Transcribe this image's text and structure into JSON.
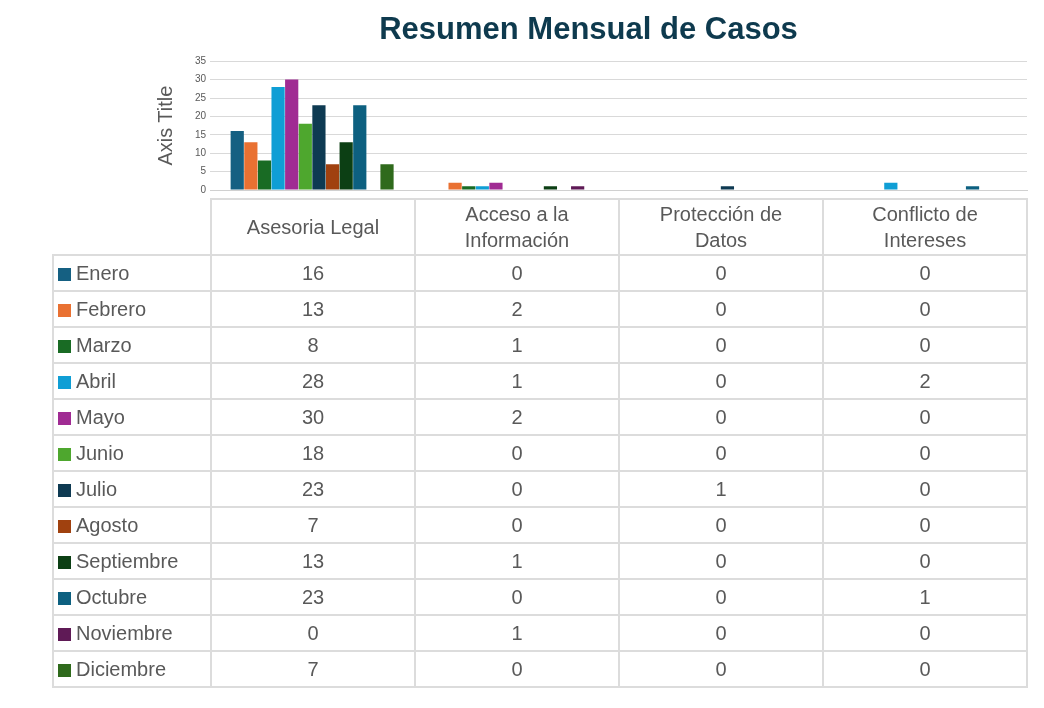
{
  "chart_data": {
    "type": "bar",
    "title": "Resumen Mensual de Casos",
    "ylabel": "Axis Title",
    "categories": [
      "Asesoria Legal",
      "Acceso a la Información",
      "Protección de Datos",
      "Conflicto de Intereses"
    ],
    "series": [
      {
        "name": "Enero",
        "color": "#156082",
        "values": [
          16,
          0,
          0,
          0
        ]
      },
      {
        "name": "Febrero",
        "color": "#e97132",
        "values": [
          13,
          2,
          0,
          0
        ]
      },
      {
        "name": "Marzo",
        "color": "#196b24",
        "values": [
          8,
          1,
          0,
          0
        ]
      },
      {
        "name": "Abril",
        "color": "#0f9ed5",
        "values": [
          28,
          1,
          0,
          2
        ]
      },
      {
        "name": "Mayo",
        "color": "#a02b93",
        "values": [
          30,
          2,
          0,
          0
        ]
      },
      {
        "name": "Junio",
        "color": "#4ea72e",
        "values": [
          18,
          0,
          0,
          0
        ]
      },
      {
        "name": "Julio",
        "color": "#0e3a52",
        "values": [
          23,
          0,
          1,
          0
        ]
      },
      {
        "name": "Agosto",
        "color": "#a0410f",
        "values": [
          7,
          0,
          0,
          0
        ]
      },
      {
        "name": "Septiembre",
        "color": "#0c3f14",
        "values": [
          13,
          1,
          0,
          0
        ]
      },
      {
        "name": "Octubre",
        "color": "#0d6080",
        "values": [
          23,
          0,
          0,
          1
        ]
      },
      {
        "name": "Noviembre",
        "color": "#5f1a56",
        "values": [
          0,
          1,
          0,
          0
        ]
      },
      {
        "name": "Diciembre",
        "color": "#2f6a1c",
        "values": [
          7,
          0,
          0,
          0
        ]
      }
    ],
    "ylim": [
      0,
      35
    ],
    "yticks": [
      0,
      5,
      10,
      15,
      20,
      25,
      30,
      35
    ],
    "grid": "y",
    "legend": "bottom",
    "data_labels": true
  }
}
